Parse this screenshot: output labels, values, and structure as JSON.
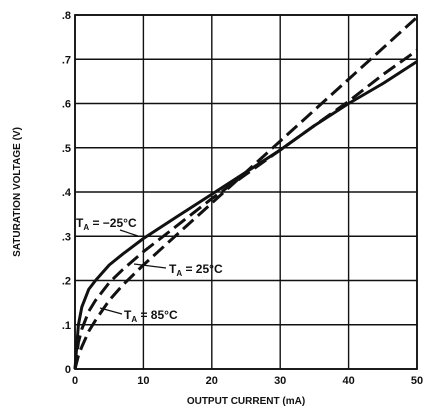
{
  "chart_data": {
    "type": "line",
    "xlabel": "OUTPUT CURRENT (mA)",
    "ylabel": "SATURATION VOLTAGE (V)",
    "xlim": [
      0,
      50
    ],
    "ylim": [
      0,
      0.8
    ],
    "grid": true,
    "x_ticks": [
      "0",
      "10",
      "20",
      "30",
      "40",
      "50"
    ],
    "y_ticks": [
      "0",
      ".1",
      ".2",
      ".3",
      ".4",
      ".5",
      ".6",
      ".7",
      ".8"
    ],
    "series": [
      {
        "name": "T_A = −25°C",
        "label_main": "T",
        "label_sub": "A",
        "label_rest": " = −25°C",
        "style": "solid",
        "x": [
          0,
          0.5,
          1,
          2,
          3,
          5,
          7,
          10,
          15,
          20,
          25,
          30,
          35,
          40,
          45,
          50
        ],
        "y": [
          0,
          0.1,
          0.14,
          0.18,
          0.2,
          0.235,
          0.26,
          0.295,
          0.345,
          0.395,
          0.445,
          0.495,
          0.55,
          0.6,
          0.645,
          0.695
        ]
      },
      {
        "name": "T_A = 25°C",
        "label_main": "T",
        "label_sub": "A",
        "label_rest": " = 25°C",
        "style": "dashed",
        "x": [
          0,
          0.5,
          1,
          2,
          3,
          5,
          7,
          10,
          15,
          20,
          25,
          30,
          35,
          40,
          45,
          50
        ],
        "y": [
          0,
          0.06,
          0.09,
          0.13,
          0.155,
          0.195,
          0.225,
          0.265,
          0.325,
          0.385,
          0.44,
          0.495,
          0.55,
          0.605,
          0.665,
          0.72
        ]
      },
      {
        "name": "T_A = 85°C",
        "label_main": "T",
        "label_sub": "A",
        "label_rest": " = 85°C",
        "style": "dashed",
        "x": [
          0,
          0.5,
          1,
          2,
          3,
          5,
          7,
          10,
          15,
          20,
          25,
          30,
          35,
          40,
          45,
          50
        ],
        "y": [
          0,
          0.03,
          0.05,
          0.085,
          0.11,
          0.155,
          0.19,
          0.235,
          0.305,
          0.375,
          0.445,
          0.515,
          0.585,
          0.655,
          0.725,
          0.795
        ]
      }
    ]
  }
}
